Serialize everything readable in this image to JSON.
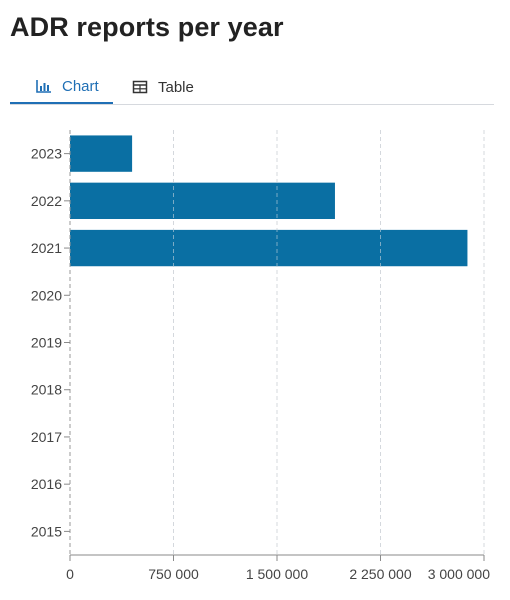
{
  "page": {
    "title": "ADR reports per year"
  },
  "tabs": [
    {
      "label": "Chart",
      "icon": "bar-chart-icon",
      "active": true
    },
    {
      "label": "Table",
      "icon": "table-icon",
      "active": false
    }
  ],
  "colors": {
    "bar": "#0a6fa3",
    "accent": "#1f6fb5"
  },
  "chart_data": {
    "type": "bar",
    "orientation": "horizontal",
    "title": "",
    "xlabel": "",
    "ylabel": "",
    "categories": [
      "2023",
      "2022",
      "2021",
      "2020",
      "2019",
      "2018",
      "2017",
      "2016",
      "2015"
    ],
    "values": [
      450000,
      1920000,
      2880000,
      0,
      0,
      0,
      0,
      0,
      0
    ],
    "xlim": [
      0,
      3000000
    ],
    "x_ticks": [
      0,
      750000,
      1500000,
      2250000,
      3000000
    ],
    "x_tick_labels": [
      "0",
      "750 000",
      "1 500 000",
      "2 250 000",
      "3 000 000"
    ],
    "grid": "vertical dashed"
  }
}
